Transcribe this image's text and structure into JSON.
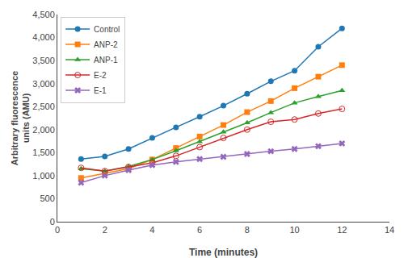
{
  "chart_data": {
    "type": "line",
    "x": [
      1,
      2,
      3,
      4,
      5,
      6,
      7,
      8,
      9,
      10,
      11,
      12
    ],
    "series": [
      {
        "name": "Control",
        "marker": "circle",
        "line_style": "solid",
        "values": [
          1360,
          1420,
          1580,
          1820,
          2050,
          2280,
          2520,
          2780,
          3050,
          3280,
          3800,
          4200
        ]
      },
      {
        "name": "ANP-2",
        "marker": "square",
        "line_style": "solid",
        "values": [
          950,
          1050,
          1150,
          1350,
          1600,
          1850,
          2100,
          2380,
          2620,
          2900,
          3150,
          3400
        ]
      },
      {
        "name": "ANP-1",
        "marker": "triangle-up",
        "line_style": "solid",
        "values": [
          1150,
          1100,
          1200,
          1350,
          1540,
          1740,
          1950,
          2150,
          2370,
          2580,
          2720,
          2850
        ]
      },
      {
        "name": "E-2",
        "marker": "circle-open",
        "line_style": "solid",
        "values": [
          1170,
          1100,
          1190,
          1280,
          1430,
          1620,
          1820,
          2000,
          2170,
          2220,
          2350,
          2450
        ]
      },
      {
        "name": "E-1",
        "marker": "x",
        "line_style": "solid",
        "values": [
          850,
          1000,
          1120,
          1230,
          1300,
          1360,
          1410,
          1470,
          1530,
          1580,
          1640,
          1700
        ]
      }
    ],
    "x_label": "Time (minutes)",
    "y_label": "Arbitrary fluorescence\nunits (AMU)",
    "xlim": [
      0,
      14
    ],
    "ylim": [
      0,
      4500
    ],
    "xticks": [
      0,
      2,
      4,
      6,
      8,
      10,
      12,
      14
    ],
    "yticks": [
      0,
      500,
      {
        "value": 1000,
        "label": "1,000"
      },
      {
        "value": 1500,
        "label": "1,500"
      },
      {
        "value": 2000,
        "label": "2,000"
      },
      {
        "value": 2500,
        "label": "2,500"
      },
      {
        "value": 3000,
        "label": "3,000"
      },
      {
        "value": 3500,
        "label": "3,500"
      },
      {
        "value": 4000,
        "label": "4,000"
      },
      {
        "value": 4500,
        "label": "4,500"
      }
    ],
    "legend": "upper left",
    "grid": false
  }
}
